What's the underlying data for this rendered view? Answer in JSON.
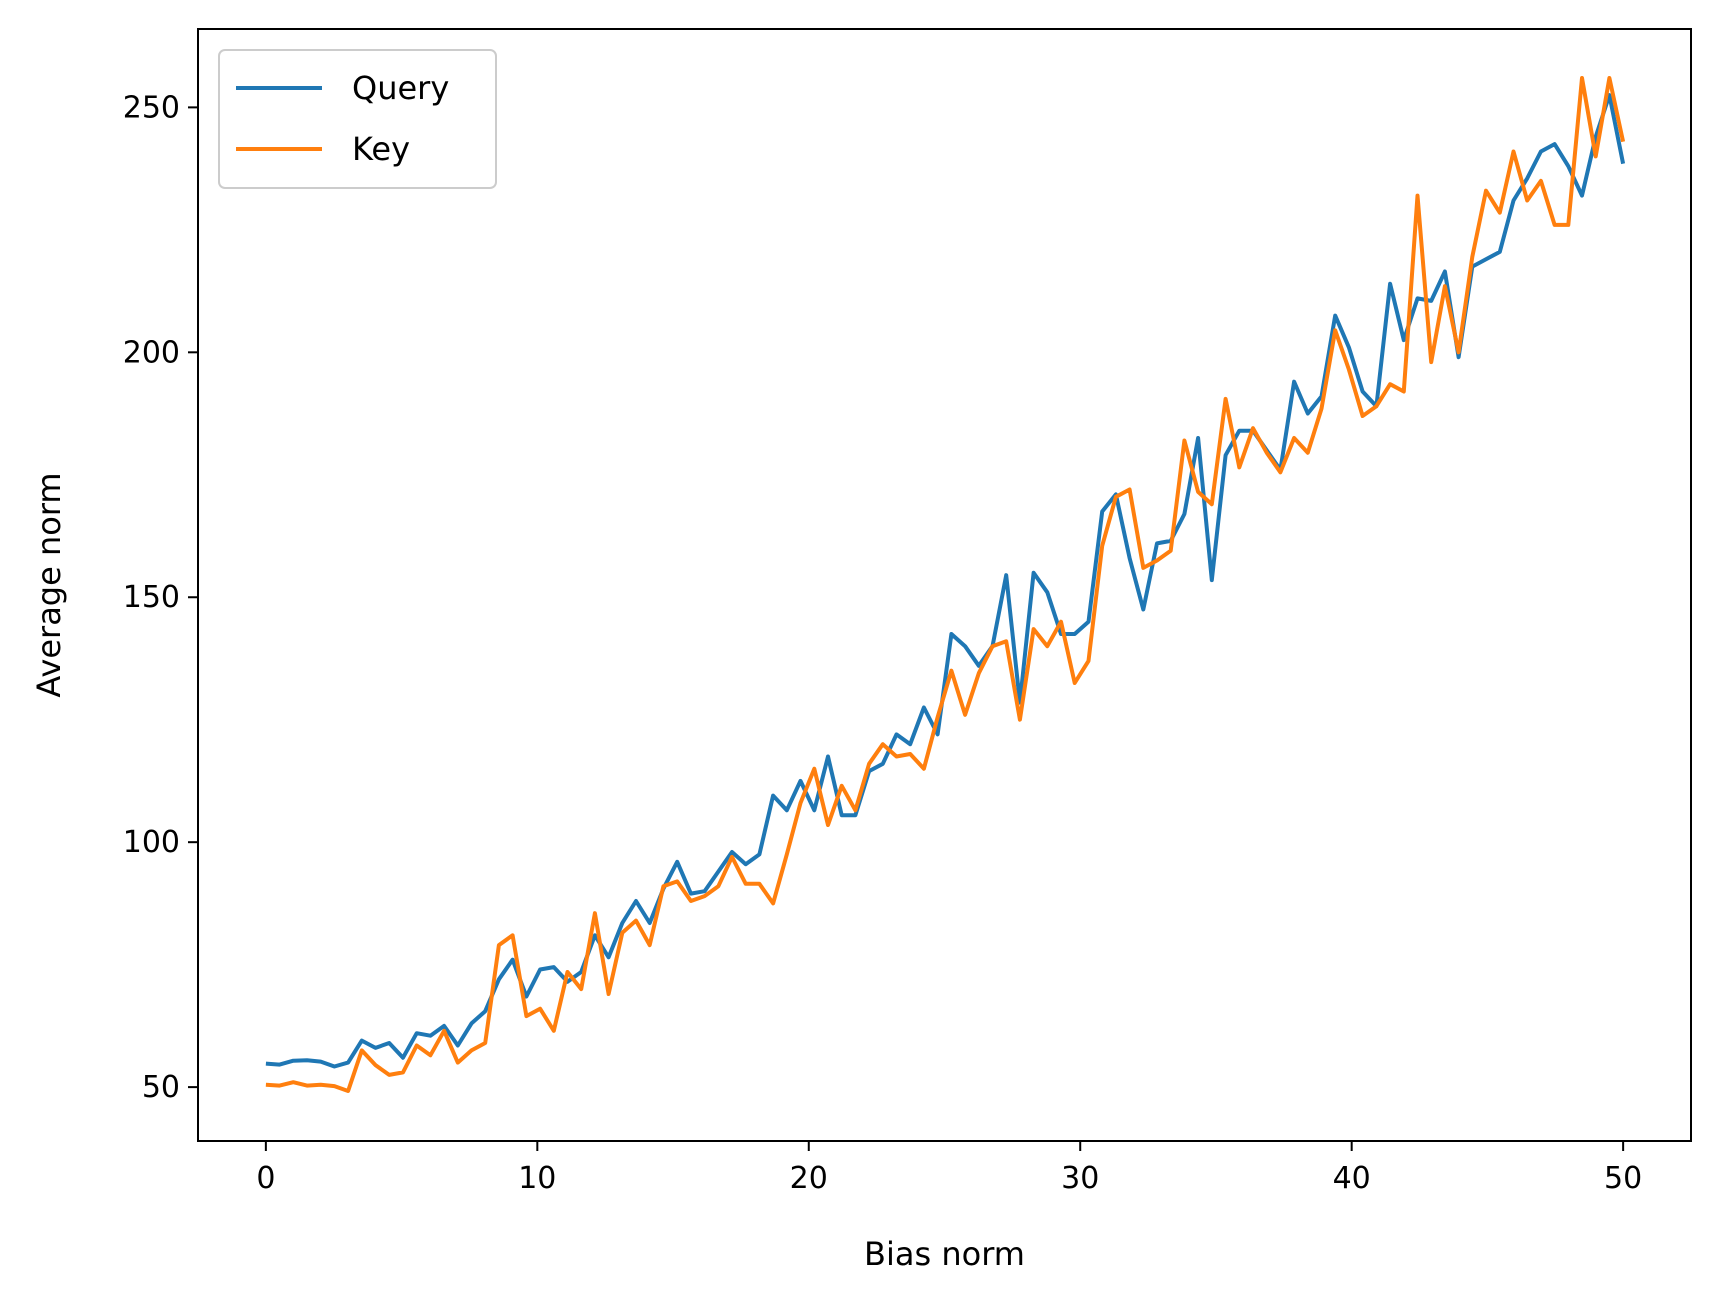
{
  "chart_data": {
    "type": "line",
    "xlabel": "Bias norm",
    "ylabel": "Average norm",
    "xlim": [
      -2.5,
      52.5
    ],
    "ylim": [
      39,
      266
    ],
    "xticks": [
      0,
      10,
      20,
      30,
      40,
      50
    ],
    "yticks": [
      50,
      100,
      150,
      200,
      250
    ],
    "grid": false,
    "legend": "upper left",
    "x": [
      0.0,
      0.505,
      1.01,
      1.515,
      2.02,
      2.525,
      3.03,
      3.535,
      4.04,
      4.545,
      5.051,
      5.556,
      6.061,
      6.566,
      7.071,
      7.576,
      8.081,
      8.586,
      9.091,
      9.596,
      10.101,
      10.606,
      11.111,
      11.616,
      12.121,
      12.626,
      13.131,
      13.636,
      14.141,
      14.646,
      15.152,
      15.657,
      16.162,
      16.667,
      17.172,
      17.677,
      18.182,
      18.687,
      19.192,
      19.697,
      20.202,
      20.707,
      21.212,
      21.717,
      22.222,
      22.727,
      23.232,
      23.737,
      24.242,
      24.747,
      25.253,
      25.758,
      26.263,
      26.768,
      27.273,
      27.778,
      28.283,
      28.788,
      29.293,
      29.798,
      30.303,
      30.808,
      31.313,
      31.818,
      32.323,
      32.828,
      33.333,
      33.838,
      34.343,
      34.848,
      35.354,
      35.859,
      36.364,
      36.869,
      37.374,
      37.879,
      38.384,
      38.889,
      39.394,
      39.899,
      40.404,
      40.909,
      41.414,
      41.919,
      42.424,
      42.929,
      43.434,
      43.939,
      44.444,
      44.949,
      45.455,
      45.96,
      46.465,
      46.97,
      47.475,
      47.98,
      48.485,
      48.99,
      49.495,
      50.0
    ],
    "series": [
      {
        "name": "Query",
        "color": "#1f77b4",
        "values": [
          54.8,
          54.6,
          55.4,
          55.5,
          55.2,
          54.2,
          55.0,
          59.5,
          58.0,
          59.0,
          56.0,
          61.0,
          60.5,
          62.5,
          58.5,
          63.0,
          65.5,
          72.0,
          76.0,
          68.5,
          74.0,
          74.5,
          71.5,
          73.5,
          81.0,
          76.5,
          83.5,
          88.0,
          83.5,
          90.5,
          96.0,
          89.5,
          90.0,
          94.0,
          98.0,
          95.5,
          97.5,
          109.5,
          106.5,
          112.5,
          106.5,
          117.5,
          105.5,
          105.5,
          114.5,
          116.0,
          122.0,
          120.0,
          127.5,
          122.0,
          142.5,
          140.0,
          136.0,
          140.0,
          154.5,
          128.5,
          155.0,
          151.0,
          142.5,
          142.5,
          145.0,
          167.5,
          171.0,
          158.0,
          147.5,
          161.0,
          161.5,
          167.0,
          182.5,
          153.5,
          179.0,
          184.0,
          184.0,
          180.0,
          176.0,
          194.0,
          187.5,
          191.0,
          207.5,
          201.0,
          192.0,
          189.0,
          214.0,
          202.5,
          211.0,
          210.5,
          216.5,
          199.0,
          217.5,
          219.0,
          220.5,
          231.0,
          235.5,
          241.0,
          242.5,
          238.0,
          232.0,
          244.0,
          252.5,
          238.5
        ]
      },
      {
        "name": "Key",
        "color": "#ff7f0e",
        "values": [
          50.5,
          50.3,
          51.0,
          50.3,
          50.5,
          50.2,
          49.2,
          57.5,
          54.5,
          52.5,
          53.0,
          58.5,
          56.5,
          61.5,
          55.0,
          57.5,
          59.0,
          79.0,
          81.0,
          64.5,
          66.0,
          61.5,
          73.5,
          70.0,
          85.5,
          69.0,
          81.5,
          84.0,
          79.0,
          91.0,
          92.0,
          88.0,
          89.0,
          91.0,
          97.0,
          91.5,
          91.5,
          87.5,
          97.5,
          108.0,
          115.0,
          103.5,
          111.5,
          106.5,
          116.0,
          120.0,
          117.5,
          118.0,
          115.0,
          125.5,
          135.0,
          126.0,
          134.5,
          140.0,
          141.0,
          125.0,
          143.5,
          140.0,
          145.0,
          132.5,
          137.0,
          160.5,
          170.5,
          172.0,
          156.0,
          157.5,
          159.5,
          182.0,
          171.5,
          169.0,
          190.5,
          176.5,
          184.5,
          179.5,
          175.5,
          182.5,
          179.5,
          188.5,
          204.5,
          196.5,
          187.0,
          189.0,
          193.5,
          192.0,
          232.0,
          198.0,
          213.5,
          200.0,
          219.5,
          233.0,
          228.5,
          241.0,
          231.0,
          235.0,
          226.0,
          226.0,
          256.0,
          240.0,
          256.0,
          243.0
        ]
      }
    ]
  }
}
